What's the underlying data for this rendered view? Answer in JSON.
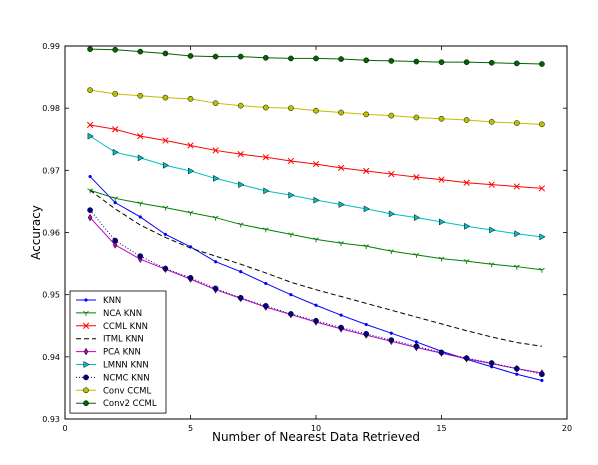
{
  "chart_data": {
    "type": "line",
    "title": "",
    "xlabel": "Number of Nearest Data Retrieved",
    "ylabel": "Accuracy",
    "xlim": [
      0,
      20
    ],
    "ylim": [
      0.93,
      0.99
    ],
    "xticks": [
      0,
      5,
      10,
      15,
      20
    ],
    "yticks": [
      0.93,
      0.94,
      0.95,
      0.96,
      0.97,
      0.98,
      0.99
    ],
    "xtick_labels": [
      "0",
      "5",
      "10",
      "15",
      "20"
    ],
    "ytick_labels": [
      "0.93",
      "0.94",
      "0.95",
      "0.96",
      "0.97",
      "0.98",
      "0.99"
    ],
    "grid": false,
    "legend_position": "bottom-left",
    "x": [
      1,
      2,
      3,
      4,
      5,
      6,
      7,
      8,
      9,
      10,
      11,
      12,
      13,
      14,
      15,
      16,
      17,
      18,
      19
    ],
    "series": [
      {
        "name": "KNN",
        "color": "#0000ff",
        "marker": "point",
        "linestyle": "solid",
        "values": [
          0.969,
          0.9648,
          0.9625,
          0.9597,
          0.9577,
          0.9553,
          0.9537,
          0.9518,
          0.95,
          0.9483,
          0.9467,
          0.9452,
          0.9438,
          0.9424,
          0.9409,
          0.9396,
          0.9384,
          0.9372,
          0.9362
        ]
      },
      {
        "name": "NCA KNN",
        "color": "#008000",
        "marker": "tri",
        "linestyle": "solid",
        "values": [
          0.9668,
          0.9655,
          0.9647,
          0.964,
          0.9632,
          0.9624,
          0.9613,
          0.9605,
          0.9597,
          0.9589,
          0.9583,
          0.9578,
          0.957,
          0.9564,
          0.9558,
          0.9554,
          0.9549,
          0.9545,
          0.954
        ]
      },
      {
        "name": "CCML KNN",
        "color": "#ff0000",
        "marker": "x",
        "linestyle": "solid",
        "values": [
          0.9773,
          0.9766,
          0.9755,
          0.9748,
          0.974,
          0.9732,
          0.9726,
          0.9721,
          0.9715,
          0.971,
          0.9704,
          0.9699,
          0.9694,
          0.9689,
          0.9685,
          0.968,
          0.9677,
          0.9674,
          0.9671
        ]
      },
      {
        "name": "ITML KNN",
        "color": "#000000",
        "marker": "none",
        "linestyle": "dashed",
        "values": [
          0.9668,
          0.9638,
          0.9612,
          0.9592,
          0.9575,
          0.9562,
          0.9549,
          0.9535,
          0.952,
          0.9508,
          0.9497,
          0.9486,
          0.9475,
          0.9464,
          0.9453,
          0.9442,
          0.9432,
          0.9423,
          0.9417
        ]
      },
      {
        "name": "PCA KNN",
        "color": "#bf00bf",
        "marker": "diamond",
        "linestyle": "solid",
        "values": [
          0.9624,
          0.958,
          0.9557,
          0.9541,
          0.9525,
          0.9508,
          0.9494,
          0.948,
          0.9468,
          0.9456,
          0.9445,
          0.9435,
          0.9425,
          0.9415,
          0.9406,
          0.9397,
          0.9389,
          0.9381,
          0.9374
        ]
      },
      {
        "name": "LMNN KNN",
        "color": "#00bfbf",
        "marker": "triangle-right",
        "linestyle": "solid",
        "values": [
          0.9755,
          0.9729,
          0.972,
          0.9708,
          0.9699,
          0.9687,
          0.9677,
          0.9667,
          0.966,
          0.9652,
          0.9645,
          0.9638,
          0.963,
          0.9624,
          0.9617,
          0.961,
          0.9604,
          0.9598,
          0.9593
        ]
      },
      {
        "name": "NCMC KNN",
        "color": "#00008b",
        "marker": "circle",
        "linestyle": "dotted",
        "values": [
          0.9636,
          0.9587,
          0.9562,
          0.9542,
          0.9527,
          0.951,
          0.9495,
          0.9482,
          0.9469,
          0.9458,
          0.9447,
          0.9437,
          0.9427,
          0.9417,
          0.9407,
          0.9398,
          0.939,
          0.9381,
          0.9372
        ]
      },
      {
        "name": "Conv CCML",
        "color": "#bfbf00",
        "marker": "circle",
        "linestyle": "solid",
        "values": [
          0.9829,
          0.9823,
          0.982,
          0.9817,
          0.9815,
          0.9808,
          0.9804,
          0.9801,
          0.98,
          0.9796,
          0.9793,
          0.979,
          0.9788,
          0.9785,
          0.9783,
          0.9781,
          0.9778,
          0.9776,
          0.9774
        ]
      },
      {
        "name": "Conv2 CCML",
        "color": "#006400",
        "marker": "circle",
        "linestyle": "solid",
        "values": [
          0.9895,
          0.9894,
          0.9891,
          0.9888,
          0.9884,
          0.9883,
          0.9883,
          0.9881,
          0.988,
          0.988,
          0.9879,
          0.9877,
          0.9876,
          0.9875,
          0.9874,
          0.9874,
          0.9873,
          0.9872,
          0.9871
        ]
      }
    ]
  }
}
